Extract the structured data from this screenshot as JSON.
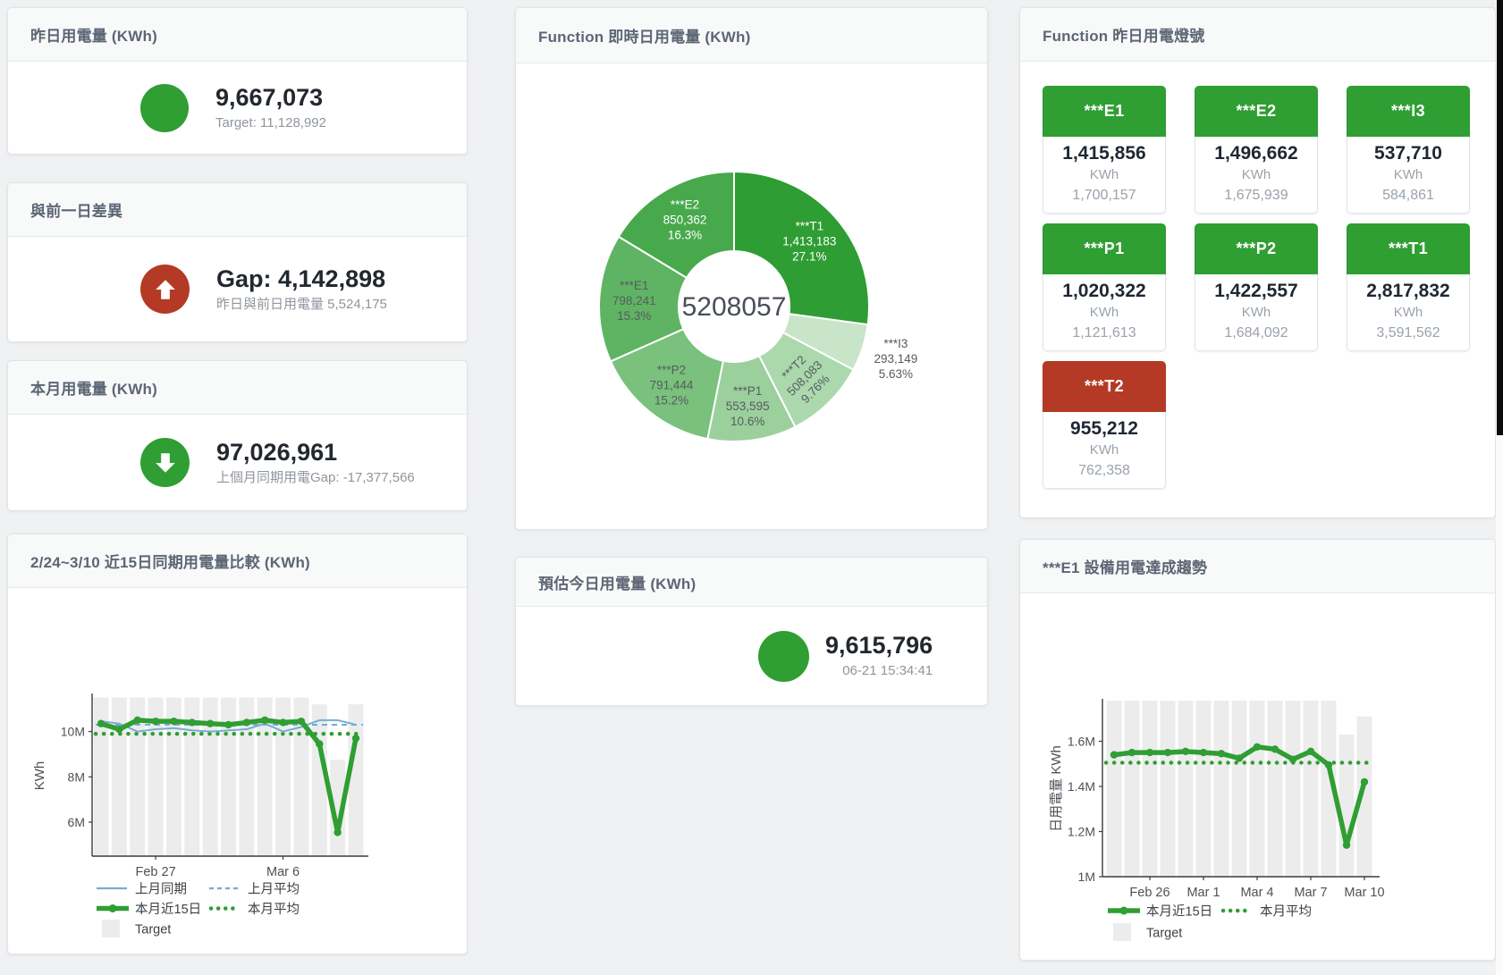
{
  "colors": {
    "green": "#2f9e33",
    "red": "#b43a25",
    "blue": "#74add1",
    "target_bar": "#ececec",
    "title_text": "#5d6675",
    "value_text": "#23282f",
    "muted_text": "#8f969e"
  },
  "cards": {
    "yesterday": {
      "title": "昨日用電量 (KWh)",
      "value": "9,667,073",
      "subtext": "Target: 11,128,992",
      "status_color": "#2f9e33"
    },
    "diff": {
      "title": "與前一日差異",
      "value": "Gap: 4,142,898",
      "subtext": "昨日與前日用電量 5,524,175",
      "icon": "arrow-up",
      "status_color": "#b43a25"
    },
    "month": {
      "title": "本月用電量 (KWh)",
      "value": "97,026,961",
      "subtext": "上個月同期用電Gap: -17,377,566",
      "icon": "arrow-down",
      "status_color": "#2f9e33"
    },
    "estimate": {
      "title": "預估今日用電量 (KWh)",
      "value": "9,615,796",
      "subtext": "06-21 15:34:41",
      "status_color": "#2f9e33"
    },
    "compare": {
      "title": "2/24~3/10 近15日同期用電量比較 (KWh)"
    },
    "realtime": {
      "title": "Function 即時日用電量 (KWh)",
      "center_value": "5208057"
    },
    "lights": {
      "title": "Function 昨日用電燈號",
      "unit": "KWh",
      "tiles": [
        {
          "label": "***E1",
          "value": "1,415,856",
          "target": "1,700,157",
          "status": "green"
        },
        {
          "label": "***E2",
          "value": "1,496,662",
          "target": "1,675,939",
          "status": "green"
        },
        {
          "label": "***I3",
          "value": "537,710",
          "target": "584,861",
          "status": "green"
        },
        {
          "label": "***P1",
          "value": "1,020,322",
          "target": "1,121,613",
          "status": "green"
        },
        {
          "label": "***P2",
          "value": "1,422,557",
          "target": "1,684,092",
          "status": "green"
        },
        {
          "label": "***T1",
          "value": "2,817,832",
          "target": "3,591,562",
          "status": "green"
        },
        {
          "label": "***T2",
          "value": "955,212",
          "target": "762,358",
          "status": "red"
        }
      ]
    },
    "trend": {
      "title": "***E1 設備用電達成趨勢"
    }
  },
  "chart_data": [
    {
      "id": "realtime-donut",
      "type": "pie",
      "title": "Function 即時日用電量 (KWh)",
      "center_label": "5208057",
      "slices": [
        {
          "name": "***T1",
          "value": 1413183,
          "value_label": "1,413,183",
          "percent": "27.1%",
          "color": "#2e9d33",
          "label_color": "#ffffff",
          "label_pos": "inside"
        },
        {
          "name": "***I3",
          "value": 293149,
          "value_label": "293,149",
          "percent": "5.63%",
          "color": "#c9e5c9",
          "label_color": "#565b60",
          "label_pos": "outside"
        },
        {
          "name": "***T2",
          "value": 508083,
          "value_label": "508,083",
          "percent": "9.76%",
          "color": "#abd8ad",
          "label_color": "#565b60",
          "label_pos": "inside",
          "label_rotate": -45
        },
        {
          "name": "***P1",
          "value": 553595,
          "value_label": "553,595",
          "percent": "10.6%",
          "color": "#9bd09d",
          "label_color": "#565b60",
          "label_pos": "inside"
        },
        {
          "name": "***P2",
          "value": 791444,
          "value_label": "791,444",
          "percent": "15.2%",
          "color": "#79c17c",
          "label_color": "#565b60",
          "label_pos": "inside"
        },
        {
          "name": "***E1",
          "value": 798241,
          "value_label": "798,241",
          "percent": "15.3%",
          "color": "#5fb463",
          "label_color": "#565b60",
          "label_pos": "inside"
        },
        {
          "name": "***E2",
          "value": 850362,
          "value_label": "850,362",
          "percent": "16.3%",
          "color": "#47a94c",
          "label_color": "#ffffff",
          "label_pos": "inside"
        }
      ]
    },
    {
      "id": "compare",
      "type": "line",
      "title": "2/24~3/10 近15日同期用電量比較 (KWh)",
      "ylabel": "KWh",
      "ylim": [
        4500000,
        11600000
      ],
      "yticks": [
        {
          "v": 6000000,
          "label": "6M"
        },
        {
          "v": 8000000,
          "label": "8M"
        },
        {
          "v": 10000000,
          "label": "10M"
        }
      ],
      "xticks": [
        {
          "index": 3,
          "label": "Feb 27"
        },
        {
          "index": 10,
          "label": "Mar 6"
        }
      ],
      "target_bars": {
        "name": "Target",
        "color": "#ececec",
        "values": [
          11500000,
          11500000,
          11500000,
          11500000,
          11500000,
          11500000,
          11500000,
          11500000,
          11500000,
          11500000,
          11500000,
          11500000,
          11200000,
          8750000,
          11200000
        ]
      },
      "series": [
        {
          "name": "上月同期",
          "style": "solid",
          "color": "#74add1",
          "width": 2,
          "values": [
            10450000,
            10350000,
            10000000,
            10100000,
            10150000,
            10050000,
            10000000,
            10050000,
            10100000,
            10350000,
            10000000,
            10200000,
            10500000,
            10500000,
            10300000
          ]
        },
        {
          "name": "本月近15日",
          "style": "solid",
          "color": "#2f9e33",
          "width": 5.5,
          "markers": true,
          "values": [
            10350000,
            10100000,
            10500000,
            10450000,
            10450000,
            10400000,
            10350000,
            10300000,
            10400000,
            10500000,
            10400000,
            10450000,
            9450000,
            5550000,
            9700000
          ]
        }
      ],
      "ref_lines": [
        {
          "name": "上月平均",
          "style": "dashed",
          "color": "#74add1",
          "value": 10300000
        },
        {
          "name": "本月平均",
          "style": "dotted",
          "color": "#2f9e33",
          "value": 9900000
        }
      ],
      "legend": [
        [
          {
            "label": "上月同期",
            "swatch": "line-blue"
          },
          {
            "label": "上月平均",
            "swatch": "dash-blue"
          }
        ],
        [
          {
            "label": "本月近15日",
            "swatch": "thick-green"
          },
          {
            "label": "本月平均",
            "swatch": "dot-green"
          }
        ],
        [
          {
            "label": "Target",
            "swatch": "square-gray"
          }
        ]
      ]
    },
    {
      "id": "trend",
      "type": "line",
      "title": "***E1 設備用電達成趨勢",
      "ylabel": "日用電量 KWh",
      "ylim": [
        1000000,
        1780000
      ],
      "yticks": [
        {
          "v": 1000000,
          "label": "1M"
        },
        {
          "v": 1200000,
          "label": "1.2M"
        },
        {
          "v": 1400000,
          "label": "1.4M"
        },
        {
          "v": 1600000,
          "label": "1.6M"
        }
      ],
      "xticks": [
        {
          "index": 2,
          "label": "Feb 26"
        },
        {
          "index": 5,
          "label": "Mar 1"
        },
        {
          "index": 8,
          "label": "Mar 4"
        },
        {
          "index": 11,
          "label": "Mar 7"
        },
        {
          "index": 14,
          "label": "Mar 10"
        }
      ],
      "target_bars": {
        "name": "Target",
        "color": "#ececec",
        "values": [
          1780000,
          1780000,
          1780000,
          1780000,
          1780000,
          1780000,
          1780000,
          1780000,
          1780000,
          1780000,
          1780000,
          1780000,
          1780000,
          1630000,
          1710000
        ]
      },
      "series": [
        {
          "name": "本月近15日",
          "style": "solid",
          "color": "#2f9e33",
          "width": 5.5,
          "markers": true,
          "values": [
            1540000,
            1550000,
            1550000,
            1550000,
            1555000,
            1550000,
            1545000,
            1525000,
            1575000,
            1565000,
            1520000,
            1555000,
            1495000,
            1140000,
            1420000
          ]
        }
      ],
      "ref_lines": [
        {
          "name": "本月平均",
          "style": "dotted",
          "color": "#2f9e33",
          "value": 1505000
        }
      ],
      "legend": [
        [
          {
            "label": "本月近15日",
            "swatch": "thick-green"
          },
          {
            "label": "本月平均",
            "swatch": "dot-green"
          }
        ],
        [
          {
            "label": "Target",
            "swatch": "square-gray"
          }
        ]
      ]
    }
  ]
}
